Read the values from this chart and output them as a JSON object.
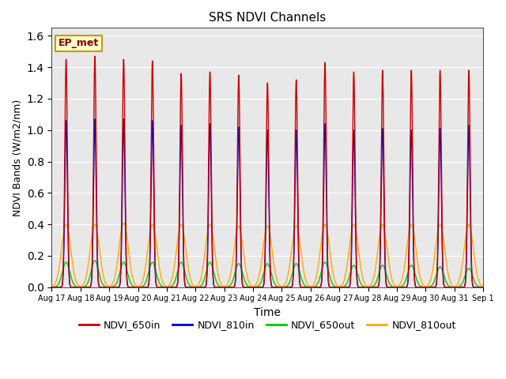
{
  "title": "SRS NDVI Channels",
  "xlabel": "Time",
  "ylabel": "NDVI Bands (W/m2/nm)",
  "annotation": "EP_met",
  "ylim": [
    0,
    1.65
  ],
  "yticks": [
    0.0,
    0.2,
    0.4,
    0.6,
    0.8,
    1.0,
    1.2,
    1.4,
    1.6
  ],
  "num_peaks": 15,
  "colors": {
    "NDVI_650in": "#cc0000",
    "NDVI_810in": "#0000cc",
    "NDVI_650out": "#00cc00",
    "NDVI_810out": "#ffaa00"
  },
  "legend_labels": [
    "NDVI_650in",
    "NDVI_810in",
    "NDVI_650out",
    "NDVI_810out"
  ],
  "xtick_labels": [
    "Aug 17",
    "Aug 18",
    "Aug 19",
    "Aug 20",
    "Aug 21",
    "Aug 22",
    "Aug 23",
    "Aug 24",
    "Aug 25",
    "Aug 26",
    "Aug 27",
    "Aug 28",
    "Aug 29",
    "Aug 30",
    "Aug 31",
    "Sep 1"
  ],
  "bg_color": "#e8e8e8",
  "peak_650in": [
    1.45,
    1.47,
    1.45,
    1.44,
    1.36,
    1.37,
    1.35,
    1.3,
    1.32,
    1.43,
    1.37,
    1.38,
    1.38,
    1.38,
    1.38
  ],
  "peak_810in": [
    1.06,
    1.07,
    1.07,
    1.06,
    1.03,
    1.04,
    1.02,
    1.0,
    1.0,
    1.04,
    1.0,
    1.01,
    1.0,
    1.01,
    1.03
  ],
  "peak_650out": [
    0.16,
    0.17,
    0.16,
    0.16,
    0.16,
    0.16,
    0.15,
    0.15,
    0.15,
    0.16,
    0.14,
    0.14,
    0.14,
    0.13,
    0.12
  ],
  "peak_810out": [
    0.4,
    0.4,
    0.41,
    0.4,
    0.4,
    0.4,
    0.39,
    0.39,
    0.39,
    0.4,
    0.4,
    0.4,
    0.4,
    0.4,
    0.4
  ]
}
